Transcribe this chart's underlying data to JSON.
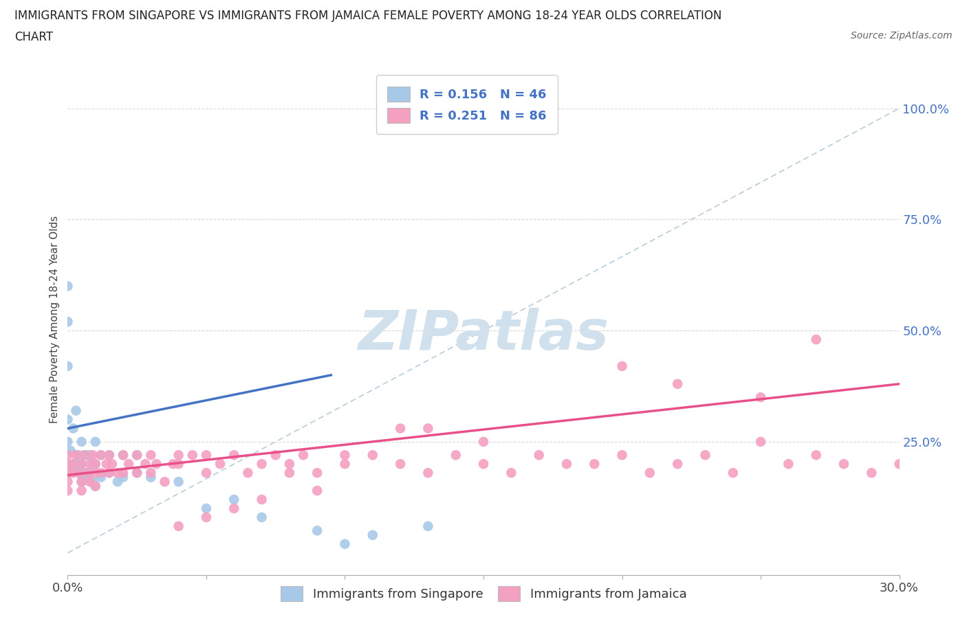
{
  "title_line1": "IMMIGRANTS FROM SINGAPORE VS IMMIGRANTS FROM JAMAICA FEMALE POVERTY AMONG 18-24 YEAR OLDS CORRELATION",
  "title_line2": "CHART",
  "source": "Source: ZipAtlas.com",
  "ylabel": "Female Poverty Among 18-24 Year Olds",
  "xlim": [
    0.0,
    0.3
  ],
  "ylim": [
    -0.05,
    1.1
  ],
  "right_ytick_vals": [
    0.25,
    0.5,
    0.75,
    1.0
  ],
  "right_ytick_labels": [
    "25.0%",
    "50.0%",
    "75.0%",
    "100.0%"
  ],
  "singapore_color": "#a8c8e8",
  "jamaica_color": "#f4a0c0",
  "singapore_line_color": "#4472c4",
  "jamaica_line_color": "#e8508a",
  "diagonal_color": "#b8ccd8",
  "watermark_color": "#d0e0ec",
  "legend_label_singapore": "Immigrants from Singapore",
  "legend_label_jamaica": "Immigrants from Jamaica",
  "sg_x": [
    0.0,
    0.0,
    0.0,
    0.0,
    0.0,
    0.0,
    0.001,
    0.001,
    0.002,
    0.002,
    0.003,
    0.003,
    0.004,
    0.004,
    0.005,
    0.005,
    0.005,
    0.006,
    0.006,
    0.007,
    0.007,
    0.008,
    0.008,
    0.009,
    0.009,
    0.01,
    0.01,
    0.01,
    0.012,
    0.012,
    0.015,
    0.015,
    0.018,
    0.02,
    0.02,
    0.025,
    0.025,
    0.03,
    0.04,
    0.05,
    0.06,
    0.07,
    0.09,
    0.1,
    0.11,
    0.13
  ],
  "sg_y": [
    0.2,
    0.25,
    0.3,
    0.42,
    0.52,
    0.6,
    0.18,
    0.23,
    0.2,
    0.28,
    0.2,
    0.32,
    0.18,
    0.22,
    0.16,
    0.2,
    0.25,
    0.18,
    0.22,
    0.17,
    0.22,
    0.18,
    0.22,
    0.16,
    0.2,
    0.15,
    0.2,
    0.25,
    0.17,
    0.22,
    0.18,
    0.22,
    0.16,
    0.17,
    0.22,
    0.18,
    0.22,
    0.17,
    0.16,
    0.1,
    0.12,
    0.08,
    0.05,
    0.02,
    0.04,
    0.06
  ],
  "jm_x": [
    0.0,
    0.0,
    0.0,
    0.0,
    0.0,
    0.002,
    0.002,
    0.003,
    0.004,
    0.005,
    0.005,
    0.005,
    0.006,
    0.007,
    0.008,
    0.008,
    0.009,
    0.01,
    0.01,
    0.01,
    0.012,
    0.012,
    0.014,
    0.015,
    0.015,
    0.016,
    0.018,
    0.02,
    0.02,
    0.022,
    0.025,
    0.025,
    0.028,
    0.03,
    0.03,
    0.032,
    0.035,
    0.038,
    0.04,
    0.04,
    0.045,
    0.05,
    0.05,
    0.055,
    0.06,
    0.065,
    0.07,
    0.075,
    0.08,
    0.085,
    0.09,
    0.1,
    0.11,
    0.12,
    0.13,
    0.14,
    0.15,
    0.16,
    0.17,
    0.18,
    0.19,
    0.2,
    0.21,
    0.22,
    0.23,
    0.24,
    0.25,
    0.26,
    0.27,
    0.28,
    0.29,
    0.3,
    0.2,
    0.22,
    0.25,
    0.13,
    0.15,
    0.1,
    0.12,
    0.08,
    0.09,
    0.07,
    0.06,
    0.05,
    0.04,
    0.27
  ],
  "jm_y": [
    0.2,
    0.22,
    0.18,
    0.16,
    0.14,
    0.2,
    0.18,
    0.22,
    0.18,
    0.2,
    0.16,
    0.14,
    0.22,
    0.18,
    0.2,
    0.16,
    0.22,
    0.2,
    0.18,
    0.15,
    0.22,
    0.18,
    0.2,
    0.22,
    0.18,
    0.2,
    0.18,
    0.22,
    0.18,
    0.2,
    0.22,
    0.18,
    0.2,
    0.22,
    0.18,
    0.2,
    0.16,
    0.2,
    0.22,
    0.2,
    0.22,
    0.18,
    0.22,
    0.2,
    0.22,
    0.18,
    0.2,
    0.22,
    0.2,
    0.22,
    0.18,
    0.2,
    0.22,
    0.2,
    0.18,
    0.22,
    0.2,
    0.18,
    0.22,
    0.2,
    0.2,
    0.22,
    0.18,
    0.2,
    0.22,
    0.18,
    0.25,
    0.2,
    0.22,
    0.2,
    0.18,
    0.2,
    0.42,
    0.38,
    0.35,
    0.28,
    0.25,
    0.22,
    0.28,
    0.18,
    0.14,
    0.12,
    0.1,
    0.08,
    0.06,
    0.48
  ],
  "sg_trend_x": [
    0.0,
    0.095
  ],
  "sg_trend_y": [
    0.28,
    0.4
  ],
  "jm_trend_x": [
    0.0,
    0.3
  ],
  "jm_trend_y": [
    0.175,
    0.38
  ]
}
